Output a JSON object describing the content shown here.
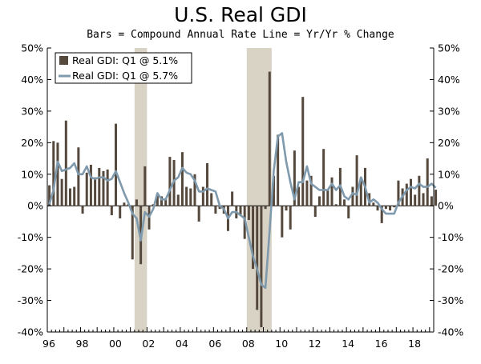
{
  "chart_data": {
    "type": "bar+line",
    "title": "U.S. Real GDI",
    "subtitle": "Bars = Compound Annual Rate     Line = Yr/Yr % Change",
    "x_tick_labels": [
      "96",
      "98",
      "00",
      "02",
      "04",
      "06",
      "08",
      "10",
      "12",
      "14",
      "16",
      "18"
    ],
    "y_tick_labels": [
      "50%",
      "40%",
      "30%",
      "20%",
      "10%",
      "0%",
      "-10%",
      "-20%",
      "-30%",
      "-40%"
    ],
    "ylim": [
      -40,
      50
    ],
    "x_start": 1996.0,
    "x_end": 2019.25,
    "recessions": [
      {
        "start": 2001.25,
        "end": 2002.0
      },
      {
        "start": 2008.0,
        "end": 2009.5
      }
    ],
    "colors": {
      "bars": "#55483c",
      "line": "#7f99ad",
      "recession": "#d9d3c6",
      "axis": "#000000"
    },
    "legend": [
      {
        "label": "Real GDI: Q1 @ 5.1%",
        "kind": "bar"
      },
      {
        "label": "Real GDI: Q1 @ 5.7%",
        "kind": "line"
      }
    ],
    "series": [
      {
        "name": "Real GDI: Q1 @ 5.1%",
        "kind": "bar",
        "values": [
          6.5,
          20.5,
          20,
          8.5,
          27,
          5.5,
          6,
          18.5,
          -2.5,
          10.5,
          13,
          9,
          12,
          11,
          11.5,
          -3,
          26,
          -4,
          1,
          0.5,
          -17,
          2,
          -18.5,
          12.5,
          -7.5,
          0.5,
          3.5,
          3,
          2,
          15.5,
          14.5,
          3.5,
          17,
          6,
          5.5,
          10,
          -5,
          6,
          13.5,
          4,
          -2.5,
          -1,
          -2.5,
          -8,
          4.5,
          -4,
          -3,
          -10.5,
          -4.5,
          -20,
          -33,
          -38.5,
          -1,
          42.5,
          9.5,
          22.5,
          -10,
          -1.5,
          -7.5,
          17.5,
          6,
          34.5,
          8,
          9.5,
          -3.5,
          3,
          18,
          5,
          9,
          0.5,
          12,
          2,
          -4,
          6,
          16,
          9,
          12,
          4,
          1,
          -1.5,
          -5.5,
          -1,
          -1.5,
          -0.5,
          8,
          5.5,
          7,
          8.5,
          3.5,
          9.5,
          4,
          15,
          3,
          5.1
        ]
      },
      {
        "name": "Real GDI: Q1 @ 5.7%",
        "kind": "line",
        "values": [
          0.5,
          5,
          14,
          11,
          11.5,
          12,
          13.5,
          10,
          10,
          12.5,
          9,
          8.5,
          9,
          9,
          8,
          8.5,
          11,
          7.5,
          4,
          1,
          -2.5,
          -4,
          -11,
          -2,
          -3.5,
          -1,
          4,
          2,
          2,
          5,
          8,
          9,
          12,
          10.5,
          10,
          8,
          4.5,
          4.5,
          5.5,
          5,
          4.5,
          0,
          -1,
          -4,
          -2,
          -2,
          -3,
          -4,
          -10,
          -16,
          -20,
          -25,
          -26,
          -8,
          11,
          22,
          23,
          14,
          7.5,
          2,
          7.5,
          7.5,
          12.5,
          7,
          6,
          5,
          5,
          5,
          7,
          5,
          6.5,
          3,
          2,
          4,
          3.5,
          9,
          6,
          1,
          2,
          1,
          -1,
          -2.5,
          -2.5,
          -2.5,
          1,
          3,
          5,
          6,
          5.5,
          7,
          6,
          6,
          7,
          5.7
        ]
      }
    ]
  }
}
